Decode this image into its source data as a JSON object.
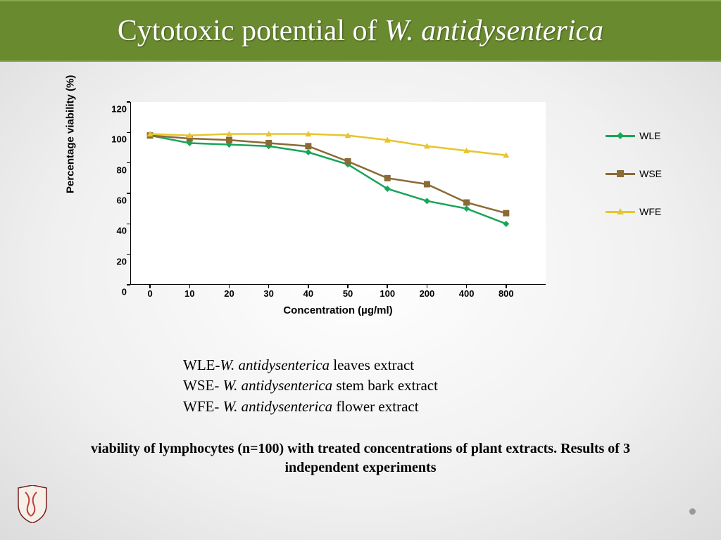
{
  "slide": {
    "title_plain": "Cytotoxic potential of ",
    "title_italic": "W. antidysenterica",
    "header_bg": "#6a8a2f",
    "header_border": "#8aa850",
    "title_color": "#ffffff",
    "title_fontsize": 42
  },
  "chart": {
    "type": "line",
    "x_label": "Concentration (µg/ml)",
    "y_label": "Percentage viability (%)",
    "label_fontsize": 15,
    "tick_fontsize": 13,
    "background_color": "#ffffff",
    "axis_color": "#000000",
    "x_categories": [
      "0",
      "10",
      "20",
      "30",
      "40",
      "50",
      "100",
      "200",
      "400",
      "800"
    ],
    "y_ticks": [
      0,
      20,
      40,
      60,
      80,
      100,
      120
    ],
    "ylim": [
      0,
      120
    ],
    "line_width": 2.5,
    "marker_size": 9,
    "series": [
      {
        "name": "WLE",
        "color": "#17a558",
        "marker": "diamond",
        "values": [
          98,
          93,
          92,
          91,
          87,
          79,
          63,
          55,
          50,
          40
        ]
      },
      {
        "name": "WSE",
        "color": "#8a6a35",
        "marker": "square",
        "values": [
          98,
          96,
          95,
          93,
          91,
          81,
          70,
          66,
          54,
          47
        ]
      },
      {
        "name": "WFE",
        "color": "#e7c52c",
        "marker": "triangle",
        "values": [
          99,
          98,
          99,
          99,
          99,
          98,
          95,
          91,
          88,
          85
        ]
      }
    ]
  },
  "legend": {
    "fontsize": 14,
    "items": [
      "WLE",
      "WSE",
      "WFE"
    ]
  },
  "definitions": {
    "fontsize": 21,
    "lines": [
      {
        "abbr": "WLE-",
        "italic": "W. antidysenterica",
        "rest": " leaves extract"
      },
      {
        "abbr": "WSE-  ",
        "italic": "W. antidysenterica",
        "rest": " stem bark extract"
      },
      {
        "abbr": "WFE- ",
        "italic": "W. antidysenterica",
        "rest": " flower extract"
      }
    ]
  },
  "caption": {
    "text_line1": "viability of lymphocytes (n=100) with treated concentrations of plant extracts. Results of 3",
    "text_line2": "independent experiments",
    "fontsize": 20
  }
}
